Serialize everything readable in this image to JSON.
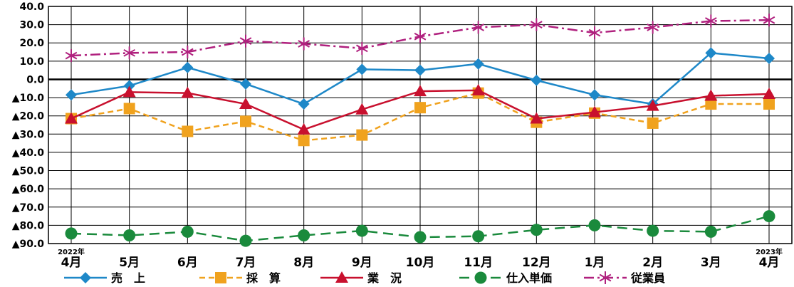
{
  "chart_data": {
    "type": "line",
    "categories": [
      "4月",
      "5月",
      "6月",
      "7月",
      "8月",
      "9月",
      "10月",
      "11月",
      "12月",
      "1月",
      "2月",
      "3月",
      "4月"
    ],
    "year_labels": [
      {
        "category_index": 0,
        "text": "2022年"
      },
      {
        "category_index": 12,
        "text": "2023年"
      }
    ],
    "ylim": [
      -90,
      40
    ],
    "yticks": [
      40,
      30,
      20,
      10,
      0,
      -10,
      -20,
      -30,
      -40,
      -50,
      -60,
      -70,
      -80,
      -90
    ],
    "ytick_labels": [
      "40.0",
      "30.0",
      "20.0",
      "10.0",
      "0.0",
      "▲10.0",
      "▲20.0",
      "▲30.0",
      "▲40.0",
      "▲50.0",
      "▲60.0",
      "▲70.0",
      "▲80.0",
      "▲90.0"
    ],
    "grid": true,
    "legend_position": "bottom",
    "series": [
      {
        "name": "売　上",
        "color": "#1e88c8",
        "marker": "diamond",
        "dash": "solid",
        "values": [
          -8.5,
          -3.5,
          6.5,
          -2.5,
          -13.5,
          5.5,
          5.0,
          8.5,
          -0.5,
          -8.5,
          -13.5,
          14.5,
          11.5
        ]
      },
      {
        "name": "採　算",
        "color": "#f0a21e",
        "marker": "square",
        "dash": "dashed",
        "values": [
          -21.5,
          -16.0,
          -28.5,
          -23.0,
          -33.5,
          -30.5,
          -15.5,
          -7.5,
          -23.5,
          -18.5,
          -24.0,
          -13.5,
          -13.5
        ]
      },
      {
        "name": "業　況",
        "color": "#c8102e",
        "marker": "triangle",
        "dash": "solid",
        "values": [
          -21.5,
          -7.0,
          -7.5,
          -13.5,
          -27.5,
          -16.5,
          -6.5,
          -6.0,
          -21.5,
          -18.0,
          -14.5,
          -9.0,
          -8.0
        ]
      },
      {
        "name": "仕入単価",
        "color": "#1a8a3c",
        "marker": "circle",
        "dash": "longdash",
        "values": [
          -84.5,
          -85.5,
          -83.5,
          -88.5,
          -85.5,
          -83.0,
          -86.5,
          -86.0,
          -82.5,
          -80.0,
          -83.0,
          -83.5,
          -75.0
        ]
      },
      {
        "name": "従業員",
        "color": "#b0207e",
        "marker": "star",
        "dash": "dashdot",
        "values": [
          13.0,
          14.5,
          15.0,
          21.0,
          19.5,
          17.0,
          23.5,
          28.5,
          30.0,
          25.5,
          28.5,
          32.0,
          32.5
        ]
      }
    ]
  }
}
